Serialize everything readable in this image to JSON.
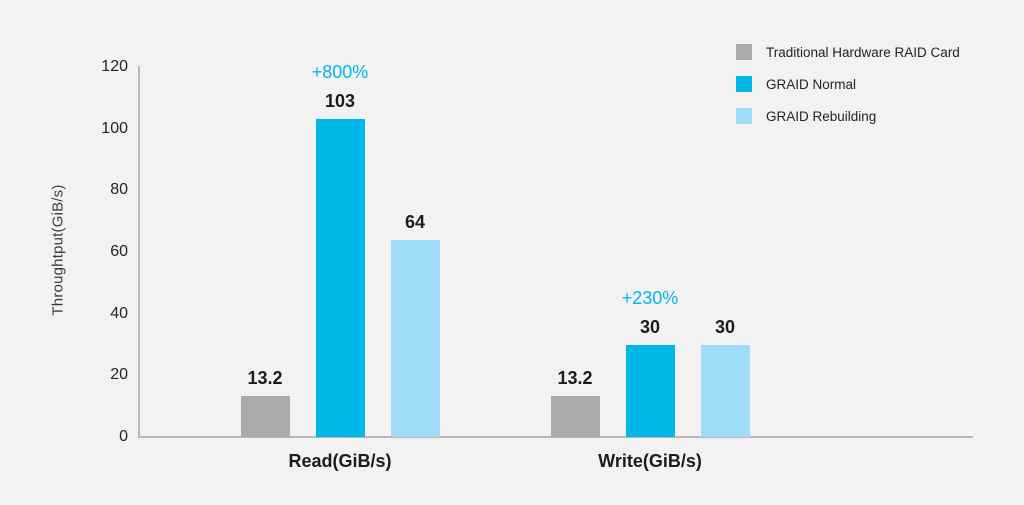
{
  "page": {
    "background_color": "#f2f2f2"
  },
  "chart_data": {
    "type": "bar",
    "title": "",
    "xlabel": "",
    "ylabel": "Throughtput(GiB/s)",
    "ylim": [
      0,
      120
    ],
    "yticks": [
      0,
      20,
      40,
      60,
      80,
      100,
      120
    ],
    "grid": false,
    "legend_position": "top-right",
    "categories": [
      "Read(GiB/s)",
      "Write(GiB/s)"
    ],
    "series": [
      {
        "name": "Traditional Hardware RAID Card",
        "color": "#a8aaac",
        "values": [
          13.2,
          13.2
        ],
        "labels": [
          "13.2",
          "13.2"
        ]
      },
      {
        "name": "GRAID Normal",
        "color": "#00b7ea",
        "values": [
          103,
          30
        ],
        "labels": [
          "103",
          "30"
        ]
      },
      {
        "name": "GRAID Rebuilding",
        "color": "#9edcf7",
        "values": [
          64,
          30
        ],
        "labels": [
          "64",
          "30"
        ]
      }
    ],
    "annotations": [
      {
        "text": "+800%",
        "category_index": 0,
        "series_index": 1,
        "color": "#00b7ea"
      },
      {
        "text": "+230%",
        "category_index": 1,
        "series_index": 1,
        "color": "#00b7ea"
      }
    ]
  }
}
